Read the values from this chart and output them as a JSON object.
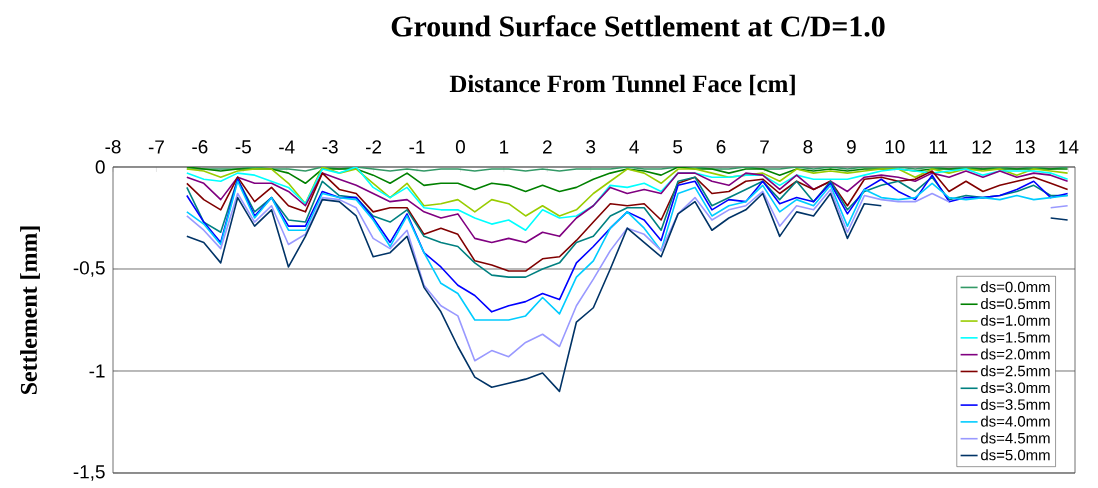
{
  "chart_data": {
    "type": "line",
    "title": "Ground Surface Settlement at C/D=1.0",
    "xlabel": "Distance From Tunnel Face [cm]",
    "ylabel": "Settlement [mm]",
    "x": [
      -6.3,
      -5.91,
      -5.52,
      -5.13,
      -4.74,
      -4.35,
      -3.96,
      -3.57,
      -3.18,
      -2.79,
      -2.4,
      -2.01,
      -1.62,
      -1.23,
      -0.84,
      -0.45,
      -0.06,
      0.33,
      0.72,
      1.11,
      1.5,
      1.89,
      2.28,
      2.67,
      3.06,
      3.45,
      3.84,
      4.23,
      4.62,
      5.01,
      5.4,
      5.79,
      6.18,
      6.57,
      6.96,
      7.35,
      7.74,
      8.13,
      8.52,
      8.91,
      9.3,
      9.69,
      10.08,
      10.47,
      10.86,
      11.25,
      11.64,
      12.03,
      12.42,
      12.81,
      13.2,
      13.59,
      13.98
    ],
    "series": [
      {
        "name": "ds=0.0mm",
        "color": "#339966",
        "values": [
          -0.01,
          -0.01,
          -0.01,
          -0.01,
          0,
          -0.01,
          -0.01,
          -0.02,
          0,
          -0.01,
          0,
          -0.01,
          -0.02,
          -0.01,
          -0.02,
          -0.01,
          -0.01,
          -0.02,
          -0.01,
          -0.01,
          -0.02,
          -0.01,
          -0.02,
          -0.01,
          -0.01,
          -0.01,
          0,
          -0.01,
          -0.01,
          0,
          0,
          -0.01,
          -0.01,
          0,
          -0.01,
          -0.01,
          0,
          -0.01,
          0,
          -0.01,
          0,
          0,
          0,
          -0.01,
          0,
          -0.01,
          0,
          -0.01,
          0,
          -0.01,
          0,
          -0.01,
          0
        ]
      },
      {
        "name": "ds=0.5mm",
        "color": "#008000",
        "values": [
          0,
          -0.01,
          -0.02,
          -0.01,
          -0.01,
          -0.01,
          -0.03,
          -0.08,
          -0.01,
          -0.01,
          -0.01,
          -0.04,
          -0.08,
          -0.03,
          -0.09,
          -0.08,
          -0.08,
          -0.11,
          -0.08,
          -0.09,
          -0.12,
          -0.09,
          -0.12,
          -0.1,
          -0.06,
          -0.03,
          -0.01,
          -0.02,
          -0.04,
          0,
          -0.01,
          -0.01,
          -0.03,
          -0.01,
          -0.01,
          -0.04,
          -0.01,
          -0.02,
          -0.01,
          -0.02,
          -0.01,
          -0.01,
          -0.01,
          -0.02,
          -0.01,
          -0.01,
          -0.01,
          -0.01,
          -0.01,
          -0.01,
          -0.01,
          -0.01,
          -0.01
        ]
      },
      {
        "name": "ds=1.0mm",
        "color": "#99cc00",
        "values": [
          -0.01,
          -0.02,
          -0.05,
          -0.02,
          -0.01,
          -0.01,
          -0.08,
          -0.18,
          0,
          -0.03,
          -0.01,
          -0.08,
          -0.15,
          -0.08,
          -0.19,
          -0.18,
          -0.16,
          -0.22,
          -0.16,
          -0.18,
          -0.24,
          -0.19,
          -0.24,
          -0.21,
          -0.13,
          -0.07,
          -0.01,
          -0.03,
          -0.08,
          -0.01,
          -0.01,
          -0.03,
          -0.05,
          -0.04,
          -0.03,
          -0.07,
          -0.01,
          -0.03,
          -0.02,
          -0.03,
          -0.02,
          -0.01,
          -0.01,
          -0.05,
          -0.01,
          -0.03,
          -0.01,
          -0.02,
          -0.01,
          -0.04,
          -0.01,
          -0.02,
          -0.03
        ]
      },
      {
        "name": "ds=1.5mm",
        "color": "#00ffff",
        "values": [
          -0.03,
          -0.06,
          -0.07,
          -0.03,
          -0.04,
          -0.07,
          -0.1,
          -0.18,
          -0.01,
          -0.03,
          0,
          -0.1,
          -0.15,
          -0.1,
          -0.2,
          -0.21,
          -0.21,
          -0.25,
          -0.28,
          -0.26,
          -0.31,
          -0.21,
          -0.25,
          -0.24,
          -0.19,
          -0.09,
          -0.1,
          -0.08,
          -0.12,
          -0.03,
          -0.03,
          -0.05,
          -0.05,
          -0.04,
          -0.04,
          -0.09,
          -0.04,
          -0.06,
          -0.06,
          -0.06,
          -0.04,
          -0.02,
          -0.01,
          -0.02,
          -0.03,
          -0.02,
          -0.01,
          -0.04,
          -0.02,
          -0.02,
          -0.02,
          -0.03,
          -0.06
        ]
      },
      {
        "name": "ds=2.0mm",
        "color": "#800080",
        "values": [
          -0.05,
          -0.08,
          -0.16,
          -0.05,
          -0.08,
          -0.08,
          -0.12,
          -0.19,
          -0.03,
          -0.06,
          -0.09,
          -0.13,
          -0.17,
          -0.16,
          -0.22,
          -0.25,
          -0.23,
          -0.35,
          -0.37,
          -0.35,
          -0.37,
          -0.32,
          -0.34,
          -0.25,
          -0.19,
          -0.1,
          -0.13,
          -0.11,
          -0.13,
          -0.03,
          -0.03,
          -0.07,
          -0.09,
          -0.03,
          -0.04,
          -0.11,
          -0.04,
          -0.11,
          -0.07,
          -0.12,
          -0.05,
          -0.04,
          -0.05,
          -0.07,
          -0.03,
          -0.05,
          -0.02,
          -0.05,
          -0.02,
          -0.05,
          -0.03,
          -0.04,
          -0.07
        ]
      },
      {
        "name": "ds=2.5mm",
        "color": "#800000",
        "values": [
          -0.08,
          -0.16,
          -0.21,
          -0.05,
          -0.17,
          -0.1,
          -0.19,
          -0.22,
          -0.03,
          -0.11,
          -0.13,
          -0.22,
          -0.2,
          -0.2,
          -0.33,
          -0.3,
          -0.33,
          -0.46,
          -0.48,
          -0.51,
          -0.51,
          -0.45,
          -0.44,
          -0.36,
          -0.27,
          -0.18,
          -0.19,
          -0.18,
          -0.26,
          -0.08,
          -0.05,
          -0.13,
          -0.12,
          -0.07,
          -0.06,
          -0.13,
          -0.07,
          -0.11,
          -0.07,
          -0.19,
          -0.06,
          -0.05,
          -0.07,
          -0.06,
          -0.02,
          -0.12,
          -0.07,
          -0.12,
          -0.09,
          -0.07,
          -0.05,
          -0.08,
          -0.11
        ]
      },
      {
        "name": "ds=3.0mm",
        "color": "#008080",
        "values": [
          -0.1,
          -0.27,
          -0.32,
          -0.06,
          -0.22,
          -0.15,
          -0.26,
          -0.27,
          -0.07,
          -0.14,
          -0.15,
          -0.24,
          -0.27,
          -0.21,
          -0.34,
          -0.37,
          -0.39,
          -0.47,
          -0.53,
          -0.54,
          -0.54,
          -0.5,
          -0.47,
          -0.37,
          -0.34,
          -0.24,
          -0.2,
          -0.2,
          -0.31,
          -0.07,
          -0.05,
          -0.19,
          -0.15,
          -0.11,
          -0.07,
          -0.16,
          -0.07,
          -0.17,
          -0.07,
          -0.21,
          -0.12,
          -0.09,
          -0.07,
          -0.12,
          -0.05,
          -0.16,
          -0.14,
          -0.15,
          -0.14,
          -0.12,
          -0.09,
          -0.14,
          -0.14
        ]
      },
      {
        "name": "ds=3.5mm",
        "color": "#0000ff",
        "values": [
          -0.14,
          -0.27,
          -0.37,
          -0.06,
          -0.24,
          -0.15,
          -0.29,
          -0.29,
          -0.12,
          -0.15,
          -0.15,
          -0.25,
          -0.37,
          -0.23,
          -0.42,
          -0.49,
          -0.58,
          -0.63,
          -0.71,
          -0.68,
          -0.66,
          -0.62,
          -0.65,
          -0.47,
          -0.39,
          -0.3,
          -0.22,
          -0.26,
          -0.36,
          -0.09,
          -0.07,
          -0.21,
          -0.16,
          -0.17,
          -0.07,
          -0.18,
          -0.15,
          -0.17,
          -0.08,
          -0.23,
          -0.11,
          -0.06,
          -0.12,
          -0.16,
          -0.04,
          -0.17,
          -0.15,
          -0.15,
          -0.14,
          -0.11,
          -0.07,
          -0.15,
          -0.13
        ]
      },
      {
        "name": "ds=4.0mm",
        "color": "#00ccff",
        "values": [
          -0.22,
          -0.28,
          -0.38,
          -0.07,
          -0.25,
          -0.15,
          -0.31,
          -0.31,
          -0.13,
          -0.15,
          -0.16,
          -0.26,
          -0.39,
          -0.24,
          -0.42,
          -0.57,
          -0.62,
          -0.75,
          -0.75,
          -0.75,
          -0.73,
          -0.64,
          -0.72,
          -0.54,
          -0.46,
          -0.3,
          -0.22,
          -0.3,
          -0.41,
          -0.13,
          -0.1,
          -0.24,
          -0.19,
          -0.17,
          -0.09,
          -0.22,
          -0.16,
          -0.19,
          -0.09,
          -0.29,
          -0.11,
          -0.15,
          -0.16,
          -0.15,
          -0.08,
          -0.15,
          -0.16,
          -0.15,
          -0.16,
          -0.14,
          -0.16,
          -0.15,
          -0.14
        ]
      },
      {
        "name": "ds=4.5mm",
        "color": "#9999ff",
        "values": [
          -0.24,
          -0.31,
          -0.4,
          -0.13,
          -0.27,
          -0.19,
          -0.38,
          -0.33,
          -0.15,
          -0.16,
          -0.2,
          -0.35,
          -0.4,
          -0.31,
          -0.58,
          -0.68,
          -0.73,
          -0.95,
          -0.9,
          -0.93,
          -0.86,
          -0.82,
          -0.88,
          -0.68,
          -0.55,
          -0.41,
          -0.3,
          -0.33,
          -0.41,
          -0.23,
          -0.15,
          -0.26,
          -0.21,
          -0.19,
          -0.12,
          -0.29,
          -0.19,
          -0.21,
          -0.11,
          -0.32,
          -0.14,
          -0.16,
          -0.17,
          -0.17,
          -0.13,
          -0.17,
          null,
          null,
          null,
          null,
          null,
          -0.2,
          -0.19
        ]
      },
      {
        "name": "ds=5.0mm",
        "color": "#003366",
        "values": [
          -0.34,
          -0.37,
          -0.47,
          -0.15,
          -0.29,
          -0.21,
          -0.49,
          -0.34,
          -0.16,
          -0.17,
          -0.24,
          -0.44,
          -0.42,
          -0.34,
          -0.59,
          -0.71,
          -0.88,
          -1.03,
          -1.08,
          -1.06,
          -1.04,
          -1.01,
          -1.1,
          -0.76,
          -0.69,
          -0.5,
          -0.3,
          -0.37,
          -0.44,
          -0.23,
          -0.17,
          -0.31,
          -0.25,
          -0.21,
          -0.13,
          -0.34,
          -0.22,
          -0.24,
          -0.13,
          -0.35,
          -0.18,
          -0.19,
          null,
          null,
          null,
          null,
          null,
          null,
          null,
          null,
          null,
          -0.25,
          -0.26
        ]
      }
    ],
    "xlim": [
      -8,
      14.15
    ],
    "ylim": [
      -1.5,
      0
    ],
    "xticks": [
      -8,
      -7,
      -6,
      -5,
      -4,
      -3,
      -2,
      -1,
      0,
      1,
      2,
      3,
      4,
      5,
      6,
      7,
      8,
      9,
      10,
      11,
      12,
      13,
      14
    ],
    "yticks": [
      0,
      {
        "value": -0.5,
        "label": "-0,5"
      },
      -1,
      {
        "value": -1.5,
        "label": "-1,5"
      }
    ],
    "grid": "y",
    "legend": "bottom right"
  }
}
